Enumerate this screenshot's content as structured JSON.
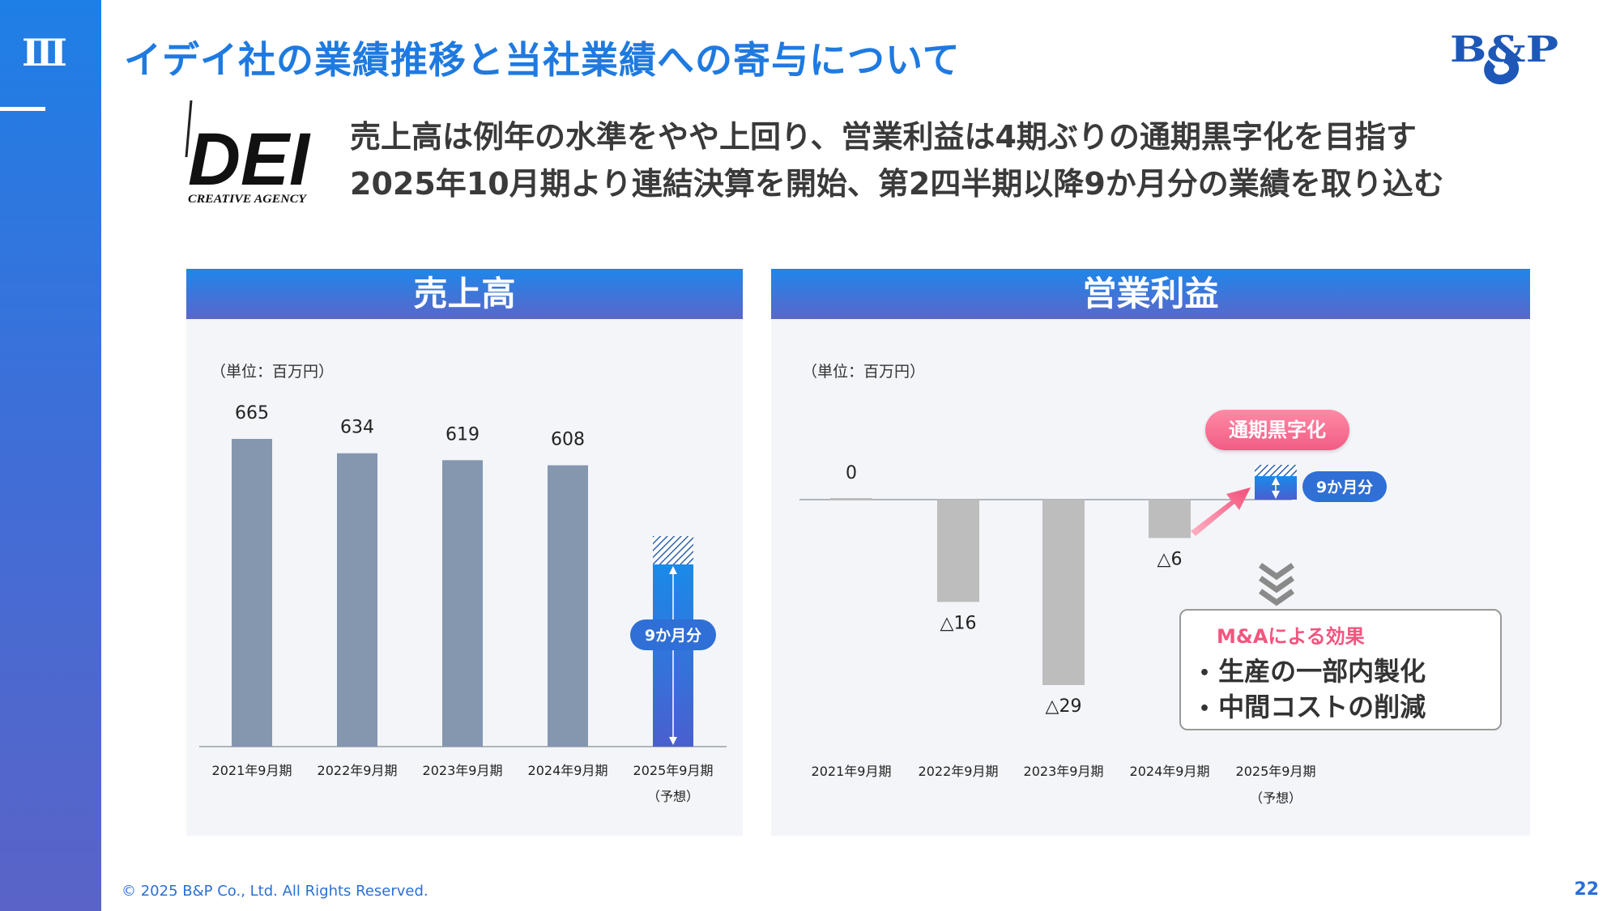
{
  "section": {
    "number": "Ⅲ"
  },
  "header": {
    "title": "イデイ社の業績推移と当社業績への寄与について"
  },
  "brand": {
    "logo_text": "B&P"
  },
  "dei": {
    "logo_text": "DEI",
    "logo_subtext": "CREATIVE AGENCY"
  },
  "headline": {
    "line1": "売上高は例年の水準をやや上回り、営業利益は4期ぶりの通期黒字化を目指す",
    "line2": "2025年10月期より連結決算を開始、第2四半期以降9か月分の業績を取り込む"
  },
  "sales_panel": {
    "title": "売上高",
    "unit": "（単位：百万円）",
    "nine_months_badge": "9か月分"
  },
  "profit_panel": {
    "title": "営業利益",
    "unit": "（単位：百万円）",
    "black_badge": "通期黒字化",
    "nine_months_badge": "9か月分",
    "effect_title": "M&Aによる効果",
    "effect_items": [
      "生産の一部内製化",
      "中間コストの削減"
    ],
    "bullet": "•"
  },
  "footer": {
    "copyright": "© 2025 B&P Co., Ltd. All Rights Reserved.",
    "page": "22"
  },
  "colors": {
    "accent": "#1f7ae0",
    "bar_gray": "#8596af",
    "bar_light": "#bdbdbd",
    "badge": "#2f6fd6",
    "pink": "#f25c84"
  },
  "chart_data": [
    {
      "type": "bar",
      "title": "売上高",
      "categories": [
        "2021年9月期",
        "2022年9月期",
        "2023年9月期",
        "2024年9月期",
        "2025年9月期"
      ],
      "category_notes": [
        "",
        "",
        "",
        "",
        "（予想）"
      ],
      "values": [
        665,
        634,
        619,
        608,
        null
      ],
      "value_labels": [
        "665",
        "634",
        "619",
        "608",
        ""
      ],
      "forecast_index": 4,
      "ylim": [
        0,
        700
      ]
    },
    {
      "type": "bar",
      "title": "営業利益",
      "categories": [
        "2021年9月期",
        "2022年9月期",
        "2023年9月期",
        "2024年9月期",
        "2025年9月期"
      ],
      "category_notes": [
        "",
        "",
        "",
        "",
        "（予想）"
      ],
      "values": [
        0,
        -16,
        -29,
        -6,
        null
      ],
      "value_labels": [
        "0",
        "△16",
        "△29",
        "△6",
        ""
      ],
      "forecast_index": 4,
      "ylim": [
        -30,
        5
      ]
    }
  ]
}
